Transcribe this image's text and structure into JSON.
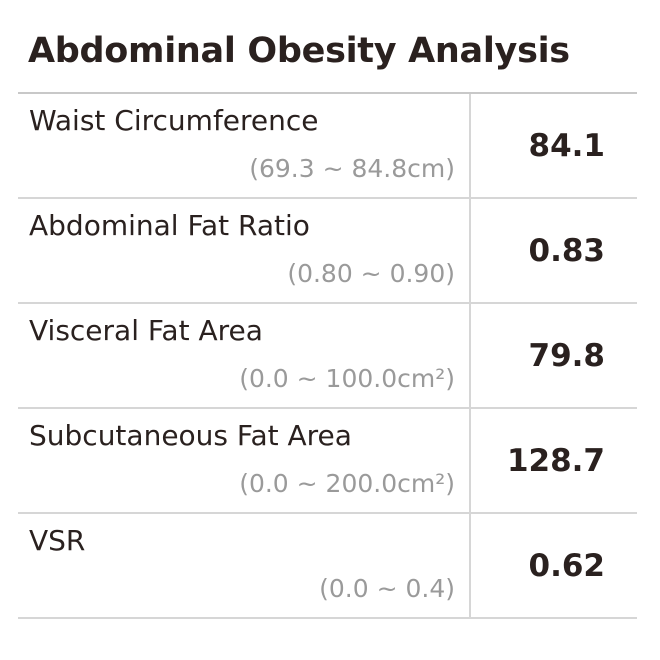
{
  "title": "Abdominal Obesity Analysis",
  "rows": [
    {
      "label": "Waist Circumference",
      "range": "(69.3 ~ 84.8cm)",
      "value": "84.1"
    },
    {
      "label": "Abdominal Fat Ratio",
      "range": "(0.80 ~ 0.90)",
      "value": "0.83"
    },
    {
      "label": "Visceral Fat Area",
      "range": "(0.0 ~ 100.0cm²)",
      "value": "79.8"
    },
    {
      "label": "Subcutaneous Fat Area",
      "range": "(0.0 ~ 200.0cm²)",
      "value": "128.7"
    },
    {
      "label": "VSR",
      "range": "(0.0 ~ 0.4)",
      "value": "0.62"
    }
  ]
}
